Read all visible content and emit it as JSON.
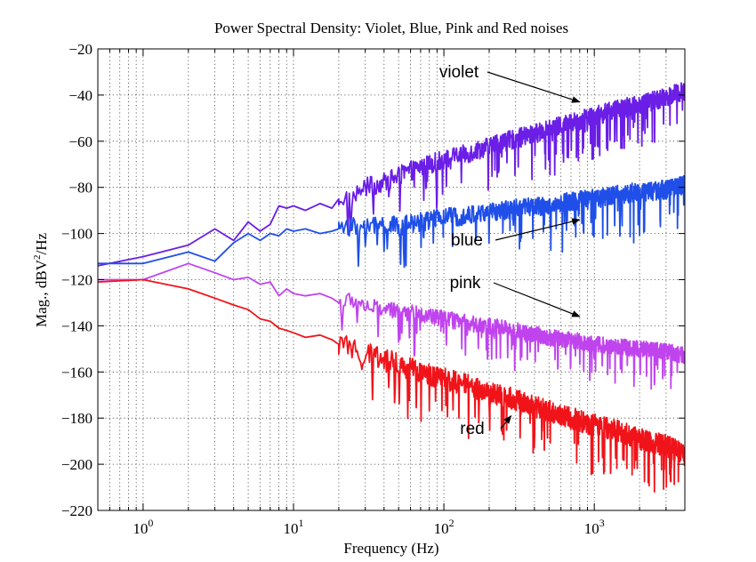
{
  "chart_data": {
    "type": "line",
    "title": "Power Spectral Density: Violet, Blue, Pink and Red noises",
    "xlabel": "Frequency (Hz)",
    "ylabel_main": "Mag., dBV",
    "ylabel_sup": "2",
    "ylabel_tail": "/Hz",
    "xscale": "log",
    "xlim": [
      0.5,
      4000
    ],
    "ylim": [
      -220,
      -20
    ],
    "grid": true,
    "x_ticks": [
      {
        "value": 1,
        "base": "10",
        "exp": "0"
      },
      {
        "value": 10,
        "base": "10",
        "exp": "1"
      },
      {
        "value": 100,
        "base": "10",
        "exp": "2"
      },
      {
        "value": 1000,
        "base": "10",
        "exp": "3"
      }
    ],
    "y_ticks": [
      -20,
      -40,
      -60,
      -80,
      -100,
      -120,
      -140,
      -160,
      -180,
      -200,
      -220
    ],
    "y_tick_labels": [
      "−20",
      "−40",
      "−60",
      "−80",
      "−100",
      "−120",
      "−140",
      "−160",
      "−180",
      "−200",
      "−220"
    ],
    "series": [
      {
        "name": "violet",
        "color": "#6a1ee6",
        "x": [
          0.5,
          1,
          2,
          3,
          4,
          5,
          6,
          7,
          8,
          9,
          10,
          12,
          15,
          18,
          20,
          25,
          30,
          40,
          50,
          70,
          100,
          150,
          200,
          300,
          500,
          700,
          1000,
          1500,
          2000,
          3000,
          4000
        ],
        "y": [
          -114,
          -110,
          -105,
          -98,
          -103,
          -95,
          -99,
          -96,
          -88,
          -89,
          -88,
          -90,
          -87,
          -89,
          -85,
          -84,
          -80,
          -78,
          -75,
          -71,
          -68,
          -65,
          -62,
          -59,
          -55,
          -52,
          -49,
          -46,
          -44,
          -41,
          -38
        ],
        "noise_amplitude": 7
      },
      {
        "name": "blue",
        "color": "#1f4fe8",
        "x": [
          0.5,
          1,
          2,
          3,
          4,
          5,
          6,
          7,
          8,
          9,
          10,
          12,
          15,
          18,
          20,
          25,
          30,
          40,
          50,
          70,
          100,
          150,
          200,
          300,
          500,
          700,
          1000,
          1500,
          2000,
          3000,
          4000
        ],
        "y": [
          -113,
          -113,
          -108,
          -112,
          -104,
          -100,
          -103,
          -100,
          -101,
          -98,
          -99,
          -98,
          -100,
          -99,
          -98,
          -97,
          -97,
          -96,
          -97,
          -95,
          -93,
          -92,
          -91,
          -89,
          -88,
          -86,
          -85,
          -83,
          -82,
          -81,
          -79
        ],
        "noise_amplitude": 7
      },
      {
        "name": "pink",
        "color": "#c044ee",
        "x": [
          0.5,
          1,
          2,
          3,
          4,
          5,
          6,
          7,
          8,
          9,
          10,
          12,
          15,
          18,
          20,
          25,
          30,
          40,
          50,
          70,
          100,
          150,
          200,
          300,
          500,
          700,
          1000,
          1500,
          2000,
          3000,
          4000
        ],
        "y": [
          -120,
          -120,
          -113,
          -117,
          -120,
          -119,
          -122,
          -121,
          -127,
          -124,
          -126,
          -127,
          -126,
          -128,
          -130,
          -129,
          -131,
          -133,
          -134,
          -135,
          -137,
          -139,
          -140,
          -142,
          -145,
          -146,
          -148,
          -149,
          -150,
          -151,
          -153
        ],
        "noise_amplitude": 6
      },
      {
        "name": "red",
        "color": "#f0141a",
        "x": [
          0.5,
          1,
          2,
          3,
          4,
          5,
          6,
          7,
          8,
          9,
          10,
          12,
          15,
          18,
          20,
          25,
          30,
          40,
          50,
          70,
          100,
          150,
          200,
          300,
          500,
          700,
          1000,
          1500,
          2000,
          3000,
          4000
        ],
        "y": [
          -121,
          -120,
          -124,
          -128,
          -131,
          -133,
          -137,
          -138,
          -141,
          -142,
          -143,
          -145,
          -144,
          -146,
          -148,
          -150,
          -152,
          -154,
          -157,
          -160,
          -163,
          -166,
          -169,
          -172,
          -177,
          -180,
          -183,
          -186,
          -189,
          -192,
          -196
        ],
        "noise_amplitude": 8
      }
    ],
    "annotations": [
      {
        "text": "violet",
        "target": [
          800,
          -43
        ]
      },
      {
        "text": "blue",
        "target": [
          800,
          -94
        ]
      },
      {
        "text": "pink",
        "target": [
          800,
          -136
        ]
      },
      {
        "text": "red",
        "target": [
          280,
          -179
        ]
      }
    ]
  }
}
